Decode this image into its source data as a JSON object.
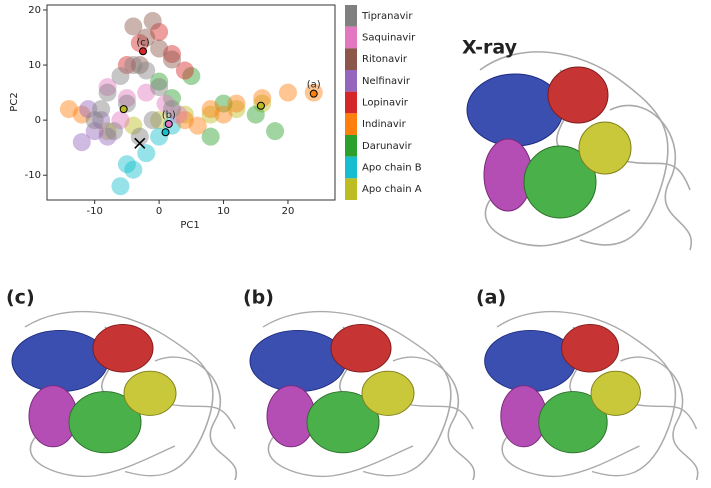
{
  "chart_data": {
    "type": "scatter",
    "xlabel": "PC1",
    "ylabel": "PC2",
    "xlim": [
      -17.4,
      27.3
    ],
    "ylim": [
      -14.5,
      20.9
    ],
    "xticks": [
      -10,
      0,
      10,
      20
    ],
    "yticks": [
      -10,
      0,
      10,
      20
    ],
    "series": [
      {
        "name": "Tipranavir",
        "color": "#808080",
        "x": [
          -10,
          -8,
          -6,
          -4,
          -2,
          0,
          2,
          -7,
          -3,
          -5,
          -9,
          -1
        ],
        "y": [
          0,
          5,
          8,
          10,
          9,
          6,
          2,
          -2,
          -3,
          3,
          2,
          0
        ]
      },
      {
        "name": "Saquinavir",
        "color": "#e377c2",
        "x": [
          -8,
          -5,
          -2,
          1,
          3,
          -6
        ],
        "y": [
          6,
          4,
          5,
          3,
          1,
          0
        ]
      },
      {
        "name": "Ritonavir",
        "color": "#8c564b",
        "x": [
          -4,
          -2,
          0,
          2,
          -3,
          -1
        ],
        "y": [
          17,
          15,
          13,
          11,
          10,
          18
        ]
      },
      {
        "name": "Nelfinavir",
        "color": "#9467bd",
        "x": [
          -12,
          -10,
          -9,
          -11,
          -8
        ],
        "y": [
          -4,
          -2,
          0,
          2,
          -3
        ]
      },
      {
        "name": "Lopinavir",
        "color": "#d62728",
        "x": [
          -3,
          0,
          2,
          -5,
          4
        ],
        "y": [
          14,
          16,
          12,
          10,
          9
        ]
      },
      {
        "name": "Indinavir",
        "color": "#ff7f0e",
        "x": [
          -14,
          -12,
          4,
          8,
          12,
          16,
          20,
          24,
          6,
          10
        ],
        "y": [
          2,
          1,
          0,
          2,
          3,
          4,
          5,
          5,
          -1,
          1
        ]
      },
      {
        "name": "Darunavir",
        "color": "#2ca02c",
        "x": [
          2,
          5,
          10,
          15,
          18,
          8,
          0
        ],
        "y": [
          4,
          8,
          3,
          1,
          -2,
          -3,
          7
        ]
      },
      {
        "name": "Apo chain B",
        "color": "#17becf",
        "x": [
          -6,
          -4,
          -2,
          0,
          2,
          -5
        ],
        "y": [
          -12,
          -9,
          -6,
          -3,
          -1,
          -8
        ]
      },
      {
        "name": "Apo chain A",
        "color": "#bcbd22",
        "x": [
          -8,
          -4,
          0,
          4,
          8,
          12,
          16
        ],
        "y": [
          -2,
          -1,
          0,
          1,
          1,
          2,
          3
        ]
      }
    ],
    "highlights": [
      {
        "label": "(a)",
        "x": 24,
        "y": 4.8,
        "color": "#ff7f0e"
      },
      {
        "label": "(b)",
        "x": 1.5,
        "y": -0.7,
        "color": "#e377c2"
      },
      {
        "label": "(c)",
        "x": -2.5,
        "y": 12.5,
        "color": "#d62728"
      }
    ],
    "other_points": [
      {
        "x": 1,
        "y": -2.2,
        "color": "#17becf"
      },
      {
        "x": -5.5,
        "y": 2,
        "color": "#bcbd22"
      },
      {
        "x": 15.8,
        "y": 2.6,
        "color": "#bcbd22"
      }
    ],
    "cross": {
      "x": -3,
      "y": -4.2
    }
  },
  "panels": [
    {
      "label": "X-ray"
    },
    {
      "label": "(c)"
    },
    {
      "label": "(b)"
    },
    {
      "label": "(a)"
    }
  ]
}
